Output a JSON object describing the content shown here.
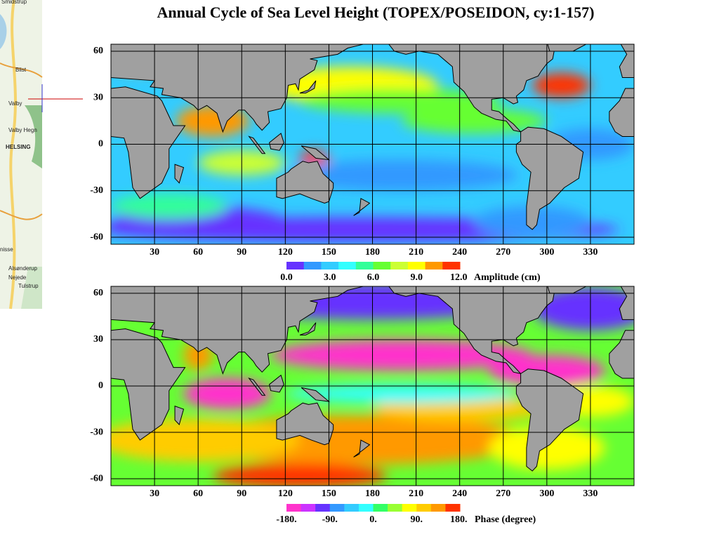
{
  "title": "Annual Cycle of Sea Level Height (TOPEX/POSEIDON, cy:1-157)",
  "inset_map": {
    "labels": [
      "Smidstrup",
      "Blist",
      "Valby",
      "Valby Hegn",
      "HELSING",
      "nisse",
      "Alsønderup",
      "Nejede",
      "Tulstrup"
    ]
  },
  "panels": [
    {
      "lat_ticks": [
        "60",
        "30",
        "0",
        "-30",
        "-60"
      ],
      "lon_ticks": [
        "30",
        "60",
        "90",
        "120",
        "150",
        "180",
        "210",
        "240",
        "270",
        "300",
        "330"
      ],
      "colorbar": {
        "labels": [
          "0.0",
          "3.0",
          "6.0",
          "9.0",
          "12.0"
        ],
        "title": "Amplitude (cm)"
      }
    },
    {
      "lat_ticks": [
        "60",
        "30",
        "0",
        "-30",
        "-60"
      ],
      "lon_ticks": [
        "30",
        "60",
        "90",
        "120",
        "150",
        "180",
        "210",
        "240",
        "270",
        "300",
        "330"
      ],
      "colorbar": {
        "labels": [
          "-180.",
          "-90.",
          "0.",
          "90.",
          "180."
        ],
        "title": "Phase (degree)"
      }
    }
  ]
}
